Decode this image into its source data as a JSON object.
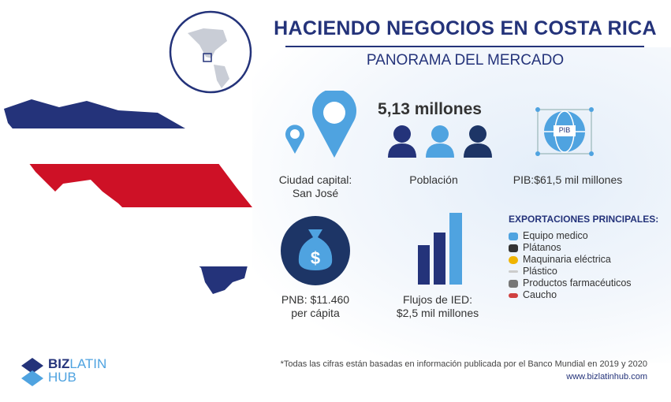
{
  "header": {
    "title": "HACIENDO NEGOCIOS EN COSTA RICA",
    "subtitle": "PANORAMA DEL MERCADO"
  },
  "colors": {
    "navy": "#24337a",
    "light_blue": "#4fa3e0",
    "red": "#ce1126"
  },
  "stats": {
    "capital": {
      "label": "Ciudad capital:",
      "value": "San José",
      "icon": "map-pin-icon"
    },
    "population": {
      "value": "5,13 millones",
      "label": "Población",
      "icon": "people-icon"
    },
    "gdp": {
      "label": "PIB:$61,5 mil millones",
      "badge": "PIB",
      "icon": "globe-icon"
    },
    "gni": {
      "label": "PNB: $11.460",
      "sub": "per cápita",
      "icon": "money-bag-icon"
    },
    "fdi": {
      "label": "Flujos de IED:",
      "value": "$2,5 mil millones",
      "icon": "bar-chart-icon"
    }
  },
  "exports": {
    "title": "EXPORTACIONES PRINCIPALES:",
    "items": [
      {
        "label": "Equipo medico",
        "icon": "medical-icon",
        "color": "#4fa3e0"
      },
      {
        "label": "Plátanos",
        "icon": "truck-icon",
        "color": "#333333"
      },
      {
        "label": "Maquinaria eléctrica",
        "icon": "gear-icon",
        "color": "#f0b400"
      },
      {
        "label": "Plástico",
        "icon": "plastic-icon",
        "color": "#bbbbbb"
      },
      {
        "label": "Productos farmacéuticos",
        "icon": "pills-icon",
        "color": "#777777"
      },
      {
        "label": "Caucho",
        "icon": "rubber-icon",
        "color": "#d04040"
      }
    ]
  },
  "footer": {
    "note": "*Todas las cifras están basadas en información publicada por el Banco Mundial en 2019 y 2020",
    "url": "www.bizlatinhub.com",
    "logo": "BIZLATIN HUB"
  }
}
